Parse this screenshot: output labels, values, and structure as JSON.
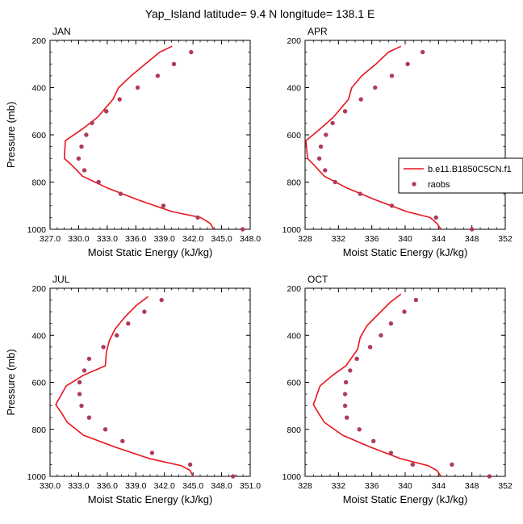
{
  "title": "Yap_Island  latitude= 9.4 N longitude= 138.1 E",
  "colors": {
    "model": "#e8141c",
    "obs": "#b03a5c",
    "axis": "#000000"
  },
  "legend": {
    "placement": "right",
    "model_label": "b.e11.B1850C5CN.f1",
    "obs_label": "raobs"
  },
  "chart_data": [
    {
      "type": "line",
      "panel": "JAN",
      "xlabel": "Moist Static Energy (kJ/kg)",
      "ylabel": "Pressure (mb)",
      "xlim": [
        327,
        348
      ],
      "xticks": [
        327,
        330,
        333,
        336,
        339,
        342,
        345,
        348
      ],
      "xtick_labels": [
        "327.0",
        "330.0",
        "333.0",
        "336.0",
        "339.0",
        "342.0",
        "345.0",
        "348.0"
      ],
      "ylim": [
        200,
        1000
      ],
      "yticks": [
        200,
        400,
        600,
        800,
        1000
      ],
      "ytick_labels": [
        "200",
        "400",
        "600",
        "800",
        "1000"
      ],
      "series": [
        {
          "name": "b.e11.B1850C5CN.f1",
          "kind": "line",
          "x": [
            339.8,
            338.5,
            337.0,
            335.5,
            334.2,
            333.6,
            332.0,
            330.4,
            328.6,
            328.5,
            329.2,
            330.4,
            333.0,
            336.2,
            339.8,
            342.8,
            343.8,
            344.2
          ],
          "y": [
            225,
            250,
            300,
            350,
            400,
            450,
            525,
            575,
            625,
            700,
            725,
            775,
            825,
            875,
            925,
            950,
            975,
            1000
          ]
        },
        {
          "name": "raobs",
          "kind": "scatter",
          "x": [
            341.8,
            340.0,
            338.3,
            336.2,
            334.3,
            332.9,
            331.4,
            330.8,
            330.3,
            330.0,
            330.6,
            332.1,
            334.4,
            338.9,
            342.5,
            347.2
          ],
          "y": [
            250,
            300,
            350,
            400,
            450,
            500,
            550,
            600,
            650,
            700,
            750,
            800,
            850,
            900,
            950,
            1000
          ]
        }
      ]
    },
    {
      "type": "line",
      "panel": "APR",
      "xlabel": "Moist Static Energy (kJ/kg)",
      "ylabel": "",
      "xlim": [
        328,
        352
      ],
      "xticks": [
        328,
        332,
        336,
        340,
        344,
        348,
        352
      ],
      "xtick_labels": [
        "328",
        "332",
        "336",
        "340",
        "344",
        "348",
        "352"
      ],
      "ylim": [
        200,
        1000
      ],
      "yticks": [
        200,
        400,
        600,
        800,
        1000
      ],
      "ytick_labels": [
        "200",
        "400",
        "600",
        "800",
        "1000"
      ],
      "series": [
        {
          "name": "b.e11.B1850C5CN.f1",
          "kind": "line",
          "x": [
            339.5,
            338.0,
            336.5,
            334.8,
            333.6,
            333.2,
            331.4,
            329.8,
            328.1,
            328.3,
            329.0,
            330.3,
            333.0,
            336.4,
            340.2,
            343.0,
            343.8,
            344.3
          ],
          "y": [
            225,
            250,
            300,
            350,
            400,
            450,
            525,
            575,
            625,
            700,
            725,
            775,
            825,
            875,
            925,
            950,
            975,
            1000
          ]
        },
        {
          "name": "raobs",
          "kind": "scatter",
          "x": [
            342.1,
            340.3,
            338.4,
            336.4,
            334.7,
            332.8,
            331.3,
            330.5,
            329.9,
            329.7,
            330.4,
            331.6,
            334.6,
            338.4,
            343.7,
            348.0
          ],
          "y": [
            250,
            300,
            350,
            400,
            450,
            500,
            550,
            600,
            650,
            700,
            750,
            800,
            850,
            900,
            950,
            1000
          ]
        }
      ]
    },
    {
      "type": "line",
      "panel": "JUL",
      "xlabel": "Moist Static Energy (kJ/kg)",
      "ylabel": "Pressure (mb)",
      "xlim": [
        330,
        351
      ],
      "xticks": [
        330,
        333,
        336,
        339,
        342,
        345,
        348,
        351
      ],
      "xtick_labels": [
        "330.0",
        "333.0",
        "336.0",
        "339.0",
        "342.0",
        "345.0",
        "348.0",
        "351.0"
      ],
      "ylim": [
        200,
        1000
      ],
      "yticks": [
        200,
        400,
        600,
        800,
        1000
      ],
      "ytick_labels": [
        "200",
        "400",
        "600",
        "800",
        "1000"
      ],
      "series": [
        {
          "name": "b.e11.B1850C5CN.f1",
          "kind": "line",
          "x": [
            340.3,
            339.0,
            337.8,
            336.8,
            336.2,
            335.9,
            335.8,
            333.5,
            331.7,
            330.6,
            331.2,
            331.8,
            333.5,
            336.8,
            340.5,
            343.8,
            344.7,
            345.0
          ],
          "y": [
            235,
            275,
            325,
            375,
            425,
            475,
            530,
            570,
            615,
            695,
            730,
            770,
            825,
            875,
            925,
            955,
            975,
            1000
          ]
        },
        {
          "name": "raobs",
          "kind": "scatter",
          "x": [
            341.7,
            339.9,
            338.2,
            337.0,
            335.6,
            334.1,
            333.6,
            333.1,
            333.1,
            333.3,
            334.1,
            335.8,
            337.6,
            340.7,
            344.7,
            349.2
          ],
          "y": [
            250,
            300,
            350,
            400,
            450,
            500,
            550,
            600,
            650,
            700,
            750,
            800,
            850,
            900,
            950,
            1000
          ]
        }
      ]
    },
    {
      "type": "line",
      "panel": "OCT",
      "xlabel": "Moist Static Energy (kJ/kg)",
      "ylabel": "",
      "xlim": [
        328,
        352
      ],
      "xticks": [
        328,
        332,
        336,
        340,
        344,
        348,
        352
      ],
      "xtick_labels": [
        "328",
        "332",
        "336",
        "340",
        "344",
        "348",
        "352"
      ],
      "ylim": [
        200,
        1000
      ],
      "yticks": [
        200,
        400,
        600,
        800,
        1000
      ],
      "ytick_labels": [
        "200",
        "400",
        "600",
        "800",
        "1000"
      ],
      "series": [
        {
          "name": "b.e11.B1850C5CN.f1",
          "kind": "line",
          "x": [
            339.5,
            338.2,
            336.8,
            335.4,
            334.6,
            334.3,
            332.9,
            331.3,
            329.8,
            329.0,
            329.6,
            330.3,
            332.5,
            335.8,
            339.5,
            342.8,
            343.8,
            344.3
          ],
          "y": [
            225,
            260,
            310,
            360,
            410,
            460,
            530,
            570,
            615,
            695,
            730,
            770,
            825,
            875,
            925,
            955,
            975,
            1000
          ]
        },
        {
          "name": "raobs",
          "kind": "scatter",
          "x": [
            341.3,
            339.9,
            338.3,
            337.1,
            335.8,
            334.2,
            333.4,
            332.9,
            332.8,
            332.8,
            333.0,
            334.5,
            336.2,
            338.3,
            340.9,
            345.6,
            350.1
          ],
          "y": [
            250,
            300,
            350,
            400,
            450,
            500,
            550,
            600,
            650,
            700,
            750,
            800,
            850,
            900,
            950,
            950,
            1000
          ]
        }
      ]
    }
  ]
}
